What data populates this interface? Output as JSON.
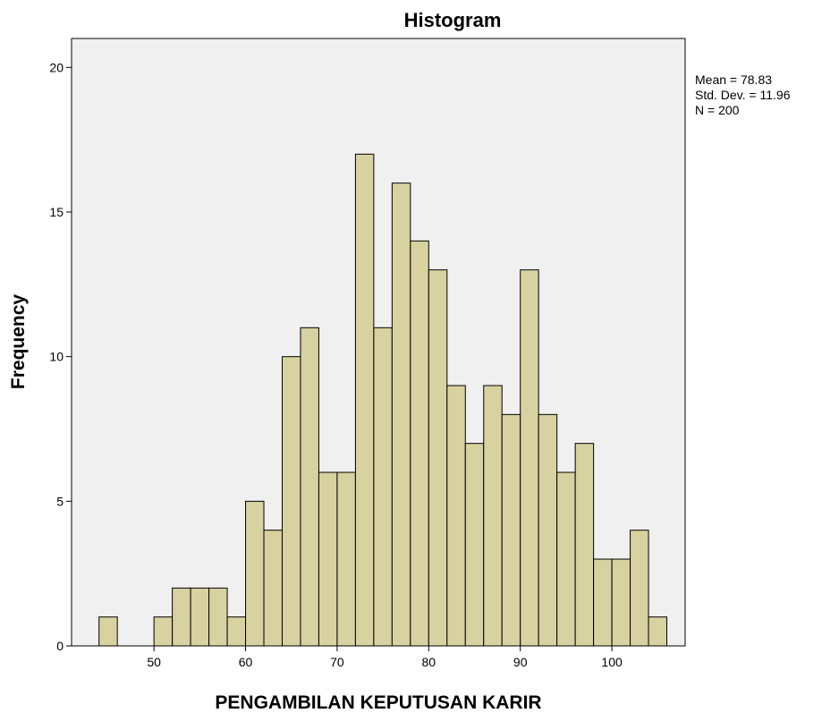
{
  "chart_data": {
    "type": "bar",
    "title": "Histogram",
    "xlabel": "PENGAMBILAN KEPUTUSAN KARIR",
    "ylabel": "Frequency",
    "bin_width": 2,
    "xlim": [
      41,
      108
    ],
    "ylim": [
      0,
      21
    ],
    "x_ticks": [
      50,
      60,
      70,
      80,
      90,
      100
    ],
    "y_ticks": [
      0,
      5,
      10,
      15,
      20
    ],
    "bins": [
      {
        "x": 45,
        "y": 1
      },
      {
        "x": 47,
        "y": 0
      },
      {
        "x": 49,
        "y": 0
      },
      {
        "x": 51,
        "y": 1
      },
      {
        "x": 53,
        "y": 2
      },
      {
        "x": 55,
        "y": 2
      },
      {
        "x": 57,
        "y": 2
      },
      {
        "x": 59,
        "y": 1
      },
      {
        "x": 61,
        "y": 5
      },
      {
        "x": 63,
        "y": 4
      },
      {
        "x": 65,
        "y": 10
      },
      {
        "x": 67,
        "y": 11
      },
      {
        "x": 69,
        "y": 6
      },
      {
        "x": 71,
        "y": 6
      },
      {
        "x": 73,
        "y": 17
      },
      {
        "x": 75,
        "y": 11
      },
      {
        "x": 77,
        "y": 16
      },
      {
        "x": 79,
        "y": 14
      },
      {
        "x": 81,
        "y": 13
      },
      {
        "x": 83,
        "y": 9
      },
      {
        "x": 85,
        "y": 7
      },
      {
        "x": 87,
        "y": 9
      },
      {
        "x": 89,
        "y": 8
      },
      {
        "x": 91,
        "y": 13
      },
      {
        "x": 93,
        "y": 8
      },
      {
        "x": 95,
        "y": 6
      },
      {
        "x": 97,
        "y": 7
      },
      {
        "x": 99,
        "y": 3
      },
      {
        "x": 101,
        "y": 3
      },
      {
        "x": 103,
        "y": 4
      },
      {
        "x": 105,
        "y": 1
      }
    ],
    "stats": [
      "Mean = 78.83",
      "Std. Dev. = 11.96",
      "N = 200"
    ],
    "colors": {
      "bar_fill": "#d8d1a0",
      "bar_stroke": "#000000",
      "plot_bg": "#f0f0f0"
    },
    "grid": false
  }
}
